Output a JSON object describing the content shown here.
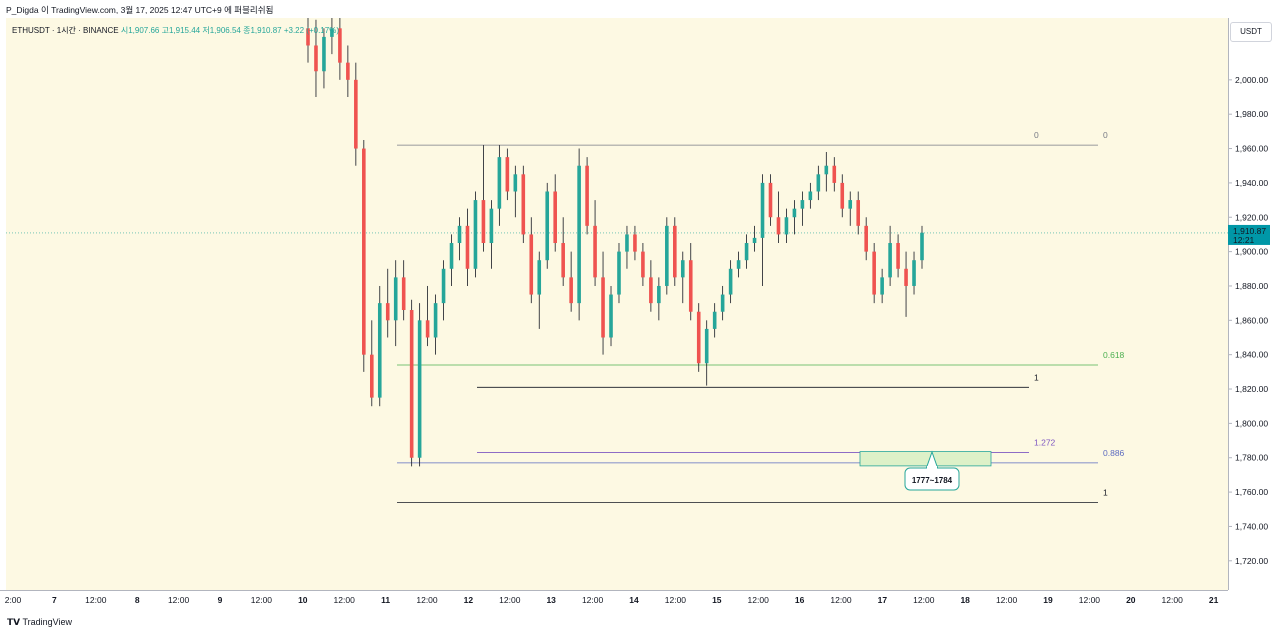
{
  "header": {
    "title": "P_Digda 이 TradingView.com, 3월 17, 2025 12:47 UTC+9 에 퍼블리쉬됨"
  },
  "legend": {
    "symbol": "ETHUSDT · 1시간 · BINANCE",
    "open_label": "시",
    "open": "1,907.66",
    "high_label": "고",
    "high": "1,915.44",
    "low_label": "저",
    "low": "1,906.54",
    "close_label": "종",
    "close": "1,910.87",
    "change": "+3.22 (+0.17%)"
  },
  "currency_button": "USDT",
  "price_badge": {
    "price": "1,910.87",
    "countdown": "12:21"
  },
  "footer": {
    "logo": "TradingView"
  },
  "colors": {
    "up": "#26a69a",
    "down": "#ef5350",
    "background": "#fdf9e3",
    "fib_gray": "#787b86",
    "fib_green": "#4caf50",
    "fib_purple": "#7e57c2",
    "zone_fill": "#ddf1c8",
    "zone_border": "#26a69a",
    "badge": "#0097a7"
  },
  "chart_data": {
    "type": "candlestick",
    "y_axis": {
      "range": [
        1703,
        2036
      ],
      "ticks": [
        "2,000.00",
        "1,980.00",
        "1,960.00",
        "1,940.00",
        "1,920.00",
        "1,900.00",
        "1,880.00",
        "1,860.00",
        "1,840.00",
        "1,820.00",
        "1,800.00",
        "1,780.00",
        "1,760.00",
        "1,740.00",
        "1,720.00"
      ]
    },
    "x_axis": {
      "labels": [
        "2:00",
        "7",
        "12:00",
        "8",
        "12:00",
        "9",
        "12:00",
        "10",
        "12:00",
        "11",
        "12:00",
        "12",
        "12:00",
        "13",
        "12:00",
        "14",
        "12:00",
        "15",
        "12:00",
        "16",
        "12:00",
        "17",
        "12:00",
        "18",
        "12:00",
        "19",
        "12:00",
        "20",
        "12:00",
        "21"
      ]
    },
    "fib_levels": [
      {
        "label_left": "0",
        "label_right": "0",
        "price": 1962
      },
      {
        "label_right": "0.618",
        "price": 1834
      },
      {
        "label_left": "1",
        "price": 1821
      },
      {
        "label_left": "1.272",
        "price": 1783
      },
      {
        "label_right": "0.886",
        "price": 1777
      },
      {
        "label_right": "1",
        "price": 1754
      }
    ],
    "target_zone": {
      "low": 1777,
      "high": 1783,
      "label": "1777~1784"
    },
    "last_price": 1910.87,
    "candles_approx": [
      [
        2030,
        2040,
        2010,
        2020
      ],
      [
        2020,
        2035,
        1990,
        2005
      ],
      [
        2005,
        2030,
        1995,
        2025
      ],
      [
        2025,
        2036,
        2015,
        2030
      ],
      [
        2030,
        2036,
        2000,
        2010
      ],
      [
        2010,
        2020,
        1990,
        2000
      ],
      [
        2000,
        2010,
        1950,
        1960
      ],
      [
        1960,
        1965,
        1830,
        1840
      ],
      [
        1840,
        1860,
        1810,
        1815
      ],
      [
        1815,
        1880,
        1810,
        1870
      ],
      [
        1870,
        1890,
        1850,
        1860
      ],
      [
        1860,
        1895,
        1845,
        1885
      ],
      [
        1885,
        1895,
        1860,
        1866
      ],
      [
        1866,
        1872,
        1775,
        1780
      ],
      [
        1780,
        1870,
        1775,
        1860
      ],
      [
        1860,
        1880,
        1845,
        1850
      ],
      [
        1850,
        1875,
        1840,
        1870
      ],
      [
        1870,
        1895,
        1860,
        1890
      ],
      [
        1890,
        1910,
        1880,
        1905
      ],
      [
        1905,
        1920,
        1895,
        1915
      ],
      [
        1915,
        1925,
        1880,
        1890
      ],
      [
        1890,
        1935,
        1885,
        1930
      ],
      [
        1930,
        1962,
        1900,
        1905
      ],
      [
        1905,
        1930,
        1890,
        1925
      ],
      [
        1925,
        1962,
        1915,
        1955
      ],
      [
        1955,
        1960,
        1930,
        1935
      ],
      [
        1935,
        1950,
        1920,
        1945
      ],
      [
        1945,
        1950,
        1905,
        1910
      ],
      [
        1910,
        1920,
        1870,
        1875
      ],
      [
        1875,
        1900,
        1855,
        1895
      ],
      [
        1895,
        1940,
        1890,
        1935
      ],
      [
        1935,
        1945,
        1900,
        1905
      ],
      [
        1905,
        1920,
        1880,
        1885
      ],
      [
        1885,
        1900,
        1865,
        1870
      ],
      [
        1870,
        1960,
        1860,
        1950
      ],
      [
        1950,
        1955,
        1910,
        1915
      ],
      [
        1915,
        1930,
        1880,
        1885
      ],
      [
        1885,
        1900,
        1840,
        1850
      ],
      [
        1850,
        1880,
        1845,
        1875
      ],
      [
        1875,
        1905,
        1870,
        1900
      ],
      [
        1900,
        1915,
        1890,
        1910
      ],
      [
        1910,
        1915,
        1895,
        1900
      ],
      [
        1900,
        1905,
        1880,
        1885
      ],
      [
        1885,
        1895,
        1865,
        1870
      ],
      [
        1870,
        1885,
        1860,
        1880
      ],
      [
        1880,
        1920,
        1875,
        1915
      ],
      [
        1915,
        1920,
        1880,
        1885
      ],
      [
        1885,
        1900,
        1870,
        1895
      ],
      [
        1895,
        1905,
        1860,
        1865
      ],
      [
        1865,
        1870,
        1830,
        1835
      ],
      [
        1835,
        1860,
        1822,
        1855
      ],
      [
        1855,
        1870,
        1850,
        1865
      ],
      [
        1865,
        1880,
        1860,
        1875
      ],
      [
        1875,
        1895,
        1870,
        1890
      ],
      [
        1890,
        1900,
        1885,
        1895
      ],
      [
        1895,
        1910,
        1890,
        1905
      ],
      [
        1905,
        1915,
        1900,
        1908
      ],
      [
        1908,
        1945,
        1880,
        1940
      ],
      [
        1940,
        1945,
        1915,
        1920
      ],
      [
        1920,
        1935,
        1905,
        1910
      ],
      [
        1910,
        1925,
        1905,
        1920
      ],
      [
        1920,
        1930,
        1910,
        1925
      ],
      [
        1925,
        1935,
        1915,
        1930
      ],
      [
        1930,
        1940,
        1925,
        1935
      ],
      [
        1935,
        1950,
        1930,
        1945
      ],
      [
        1945,
        1958,
        1935,
        1950
      ],
      [
        1950,
        1955,
        1935,
        1940
      ],
      [
        1940,
        1945,
        1920,
        1925
      ],
      [
        1925,
        1935,
        1915,
        1930
      ],
      [
        1930,
        1935,
        1910,
        1915
      ],
      [
        1915,
        1920,
        1895,
        1900
      ],
      [
        1900,
        1905,
        1870,
        1875
      ],
      [
        1875,
        1890,
        1870,
        1885
      ],
      [
        1885,
        1915,
        1880,
        1905
      ],
      [
        1905,
        1910,
        1885,
        1890
      ],
      [
        1890,
        1900,
        1862,
        1880
      ],
      [
        1880,
        1900,
        1875,
        1895
      ],
      [
        1895,
        1915,
        1890,
        1911
      ]
    ]
  }
}
